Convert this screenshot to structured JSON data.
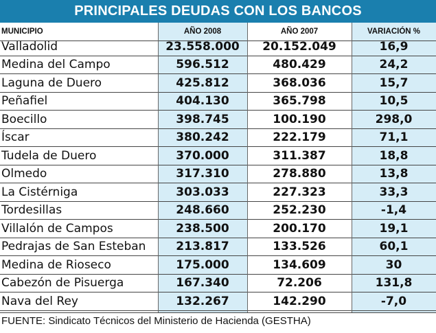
{
  "title": "PRINCIPALES DEUDAS CON LOS BANCOS",
  "headers": {
    "municipio": "MUNICIPIO",
    "y2008": "AÑO 2008",
    "y2007": "AÑO 2007",
    "variacion": "VARIACIÓN %"
  },
  "rows": [
    {
      "municipio": "Valladolid",
      "y2008": "23.558.000",
      "y2007": "20.152.049",
      "variacion": "16,9"
    },
    {
      "municipio": "Medina del Campo",
      "y2008": "596.512",
      "y2007": "480.429",
      "variacion": "24,2"
    },
    {
      "municipio": "Laguna de Duero",
      "y2008": "425.812",
      "y2007": "368.036",
      "variacion": "15,7"
    },
    {
      "municipio": "Peñafiel",
      "y2008": "404.130",
      "y2007": "365.798",
      "variacion": "10,5"
    },
    {
      "municipio": "Boecillo",
      "y2008": "398.745",
      "y2007": "100.190",
      "variacion": "298,0"
    },
    {
      "municipio": "Íscar",
      "y2008": "380.242",
      "y2007": "222.179",
      "variacion": "71,1"
    },
    {
      "municipio": "Tudela de Duero",
      "y2008": "370.000",
      "y2007": "311.387",
      "variacion": "18,8"
    },
    {
      "municipio": "Olmedo",
      "y2008": "317.310",
      "y2007": "278.880",
      "variacion": "13,8"
    },
    {
      "municipio": "La Cistérniga",
      "y2008": "303.033",
      "y2007": "227.323",
      "variacion": "33,3"
    },
    {
      "municipio": "Tordesillas",
      "y2008": "248.660",
      "y2007": "252.230",
      "variacion": "-1,4"
    },
    {
      "municipio": "Villalón de Campos",
      "y2008": "238.500",
      "y2007": "200.170",
      "variacion": "19,1"
    },
    {
      "municipio": "Pedrajas de San Esteban",
      "y2008": "213.817",
      "y2007": "133.526",
      "variacion": "60,1"
    },
    {
      "municipio": "Medina de Rioseco",
      "y2008": "175.000",
      "y2007": "134.609",
      "variacion": "30"
    },
    {
      "municipio": "Cabezón de Pisuerga",
      "y2008": "167.340",
      "y2007": "72.206",
      "variacion": "131,8"
    },
    {
      "municipio": "Nava del Rey",
      "y2008": "132.267",
      "y2007": "142.290",
      "variacion": "-7,0"
    }
  ],
  "footer": "FUENTE: Sindicato Técnicos del Ministerio de Hacienda (GESTHA)",
  "colors": {
    "title_bg": "#1a7fae",
    "title_text": "#ffffff",
    "column_shade": "#d6edf7"
  }
}
